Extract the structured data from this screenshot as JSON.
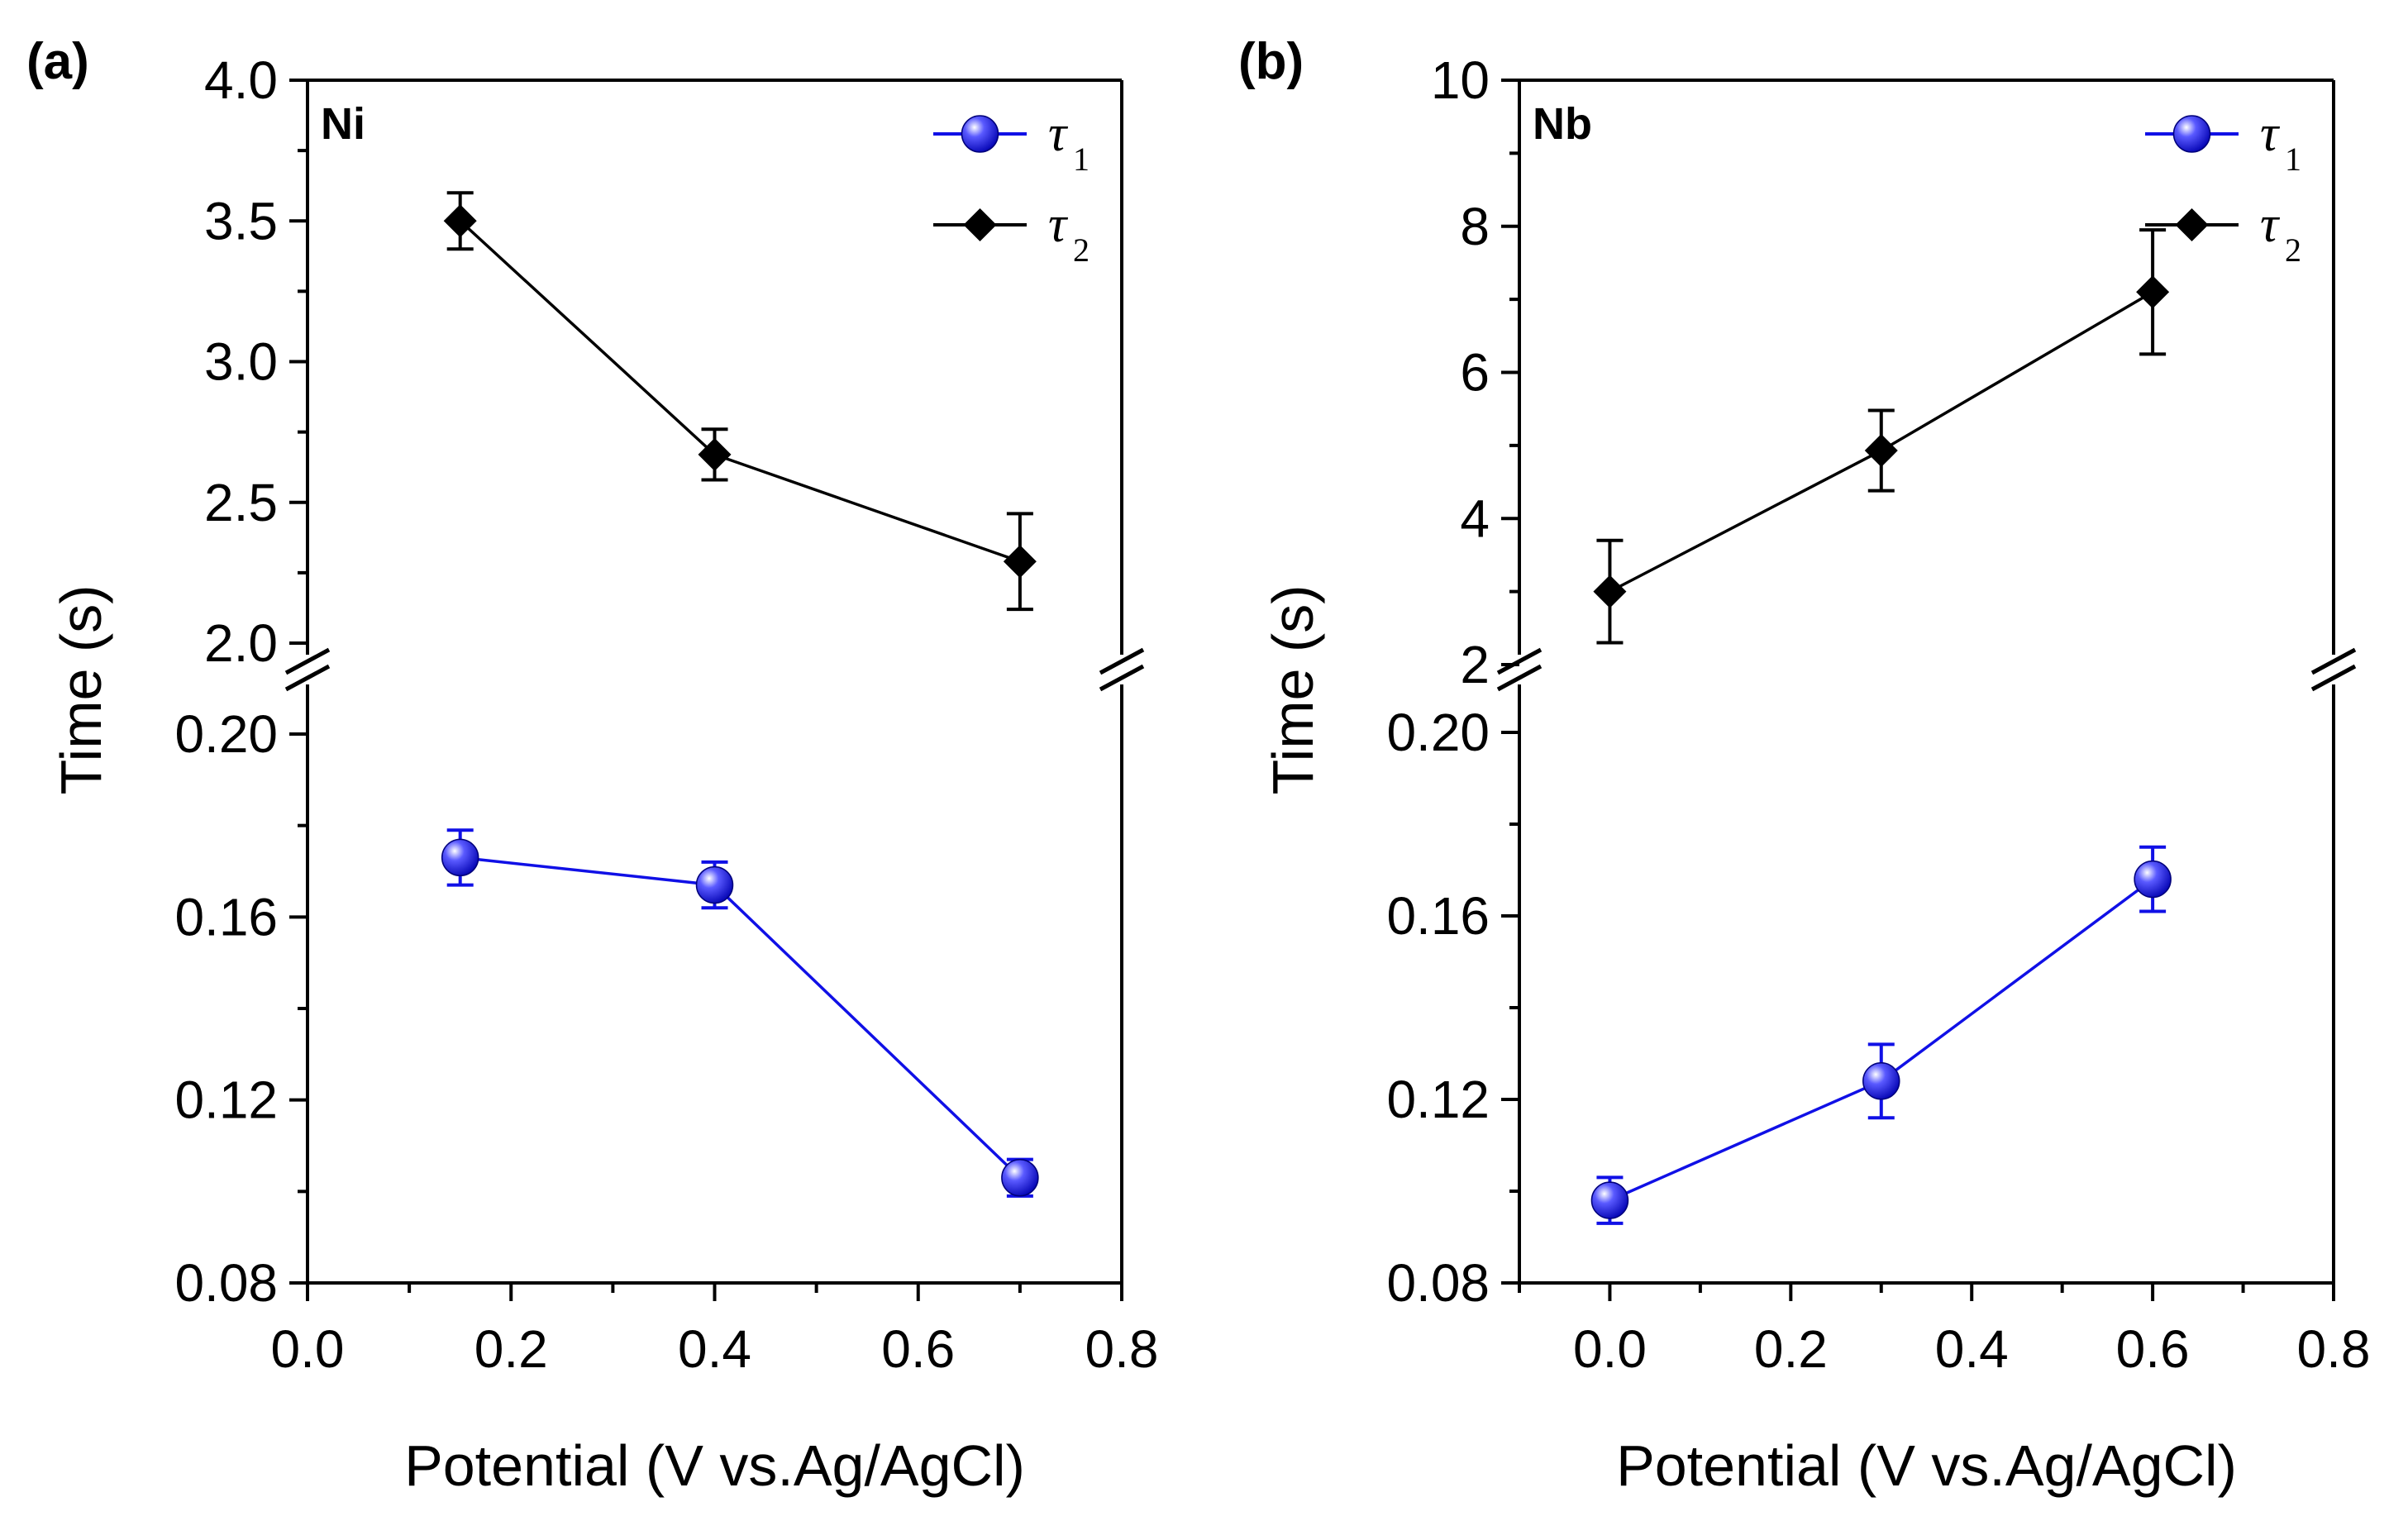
{
  "colors": {
    "tau1": "#1010e6",
    "tau2": "#000000",
    "axis": "#000000"
  },
  "chart_data": [
    {
      "type": "line",
      "panel_label": "(a)",
      "tag": "Ni",
      "xlabel": "Potential (V vs.Ag/AgCl)",
      "ylabel": "Time (s)",
      "xlim": [
        0.0,
        0.8
      ],
      "x_ticks": [
        "0.0",
        "0.2",
        "0.4",
        "0.6",
        "0.8"
      ],
      "y_break": true,
      "upper_ylim": [
        2.0,
        4.0
      ],
      "upper_ticks": [
        "2.0",
        "2.5",
        "3.0",
        "3.5",
        "4.0"
      ],
      "lower_ylim": [
        0.08,
        0.2
      ],
      "lower_ticks": [
        "0.08",
        "0.12",
        "0.16",
        "0.20"
      ],
      "legend": {
        "tau1_symbol": "τ",
        "tau1_sub": "1",
        "tau2_symbol": "τ",
        "tau2_sub": "2"
      },
      "series": [
        {
          "name": "τ1",
          "segment": "lower",
          "color": "#1010e6",
          "marker": "sphere",
          "x": [
            0.15,
            0.4,
            0.7
          ],
          "values": [
            0.173,
            0.167,
            0.103
          ],
          "errors": [
            0.006,
            0.005,
            0.004
          ]
        },
        {
          "name": "τ2",
          "segment": "upper",
          "color": "#000000",
          "marker": "diamond",
          "x": [
            0.15,
            0.4,
            0.7
          ],
          "values": [
            3.5,
            2.67,
            2.29
          ],
          "errors": [
            0.1,
            0.09,
            0.17
          ]
        }
      ]
    },
    {
      "type": "line",
      "panel_label": "(b)",
      "tag": "Nb",
      "xlabel": "Potential (V vs.Ag/AgCl)",
      "ylabel": "Time (s)",
      "xlim": [
        -0.1,
        0.8
      ],
      "x_ticks": [
        "0.0",
        "0.2",
        "0.4",
        "0.6",
        "0.8"
      ],
      "y_break": true,
      "upper_ylim": [
        2,
        10
      ],
      "upper_ticks": [
        "2",
        "4",
        "6",
        "8",
        "10"
      ],
      "lower_ylim": [
        0.08,
        0.2
      ],
      "lower_ticks": [
        "0.08",
        "0.12",
        "0.16",
        "0.20"
      ],
      "legend": {
        "tau1_symbol": "τ",
        "tau1_sub": "1",
        "tau2_symbol": "τ",
        "tau2_sub": "2"
      },
      "series": [
        {
          "name": "τ1",
          "segment": "lower",
          "color": "#1010e6",
          "marker": "sphere",
          "x": [
            0.0,
            0.3,
            0.6
          ],
          "values": [
            0.098,
            0.124,
            0.168
          ],
          "errors": [
            0.005,
            0.008,
            0.007
          ]
        },
        {
          "name": "τ2",
          "segment": "upper",
          "color": "#000000",
          "marker": "diamond",
          "x": [
            0.0,
            0.3,
            0.6
          ],
          "values": [
            3.0,
            4.93,
            7.1
          ],
          "errors": [
            0.7,
            0.55,
            0.85
          ]
        }
      ]
    }
  ]
}
